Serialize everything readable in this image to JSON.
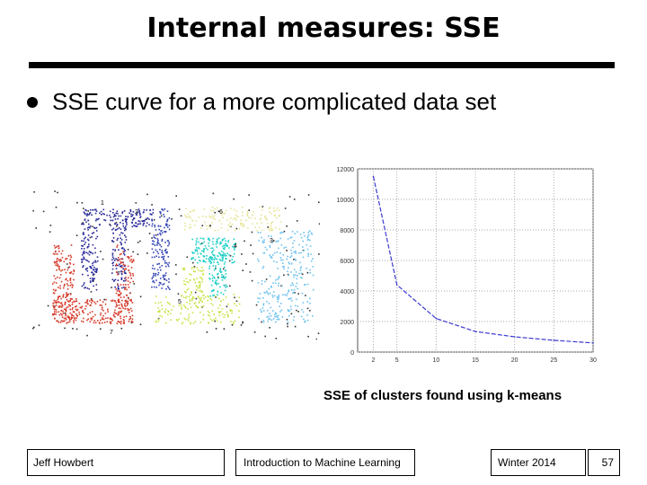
{
  "slide": {
    "title": "Internal measures: SSE",
    "bullet": "SSE curve for a more complicated data set",
    "caption": "SSE of clusters found using k-means"
  },
  "scatter_figure": {
    "cluster_labels": [
      "1",
      "2",
      "3",
      "4",
      "5",
      "6",
      "7"
    ],
    "cluster_colors": [
      "#2a2a9a",
      "#3646b6",
      "#6ec2ee",
      "#21d0c8",
      "#c8e54a",
      "#e7e395",
      "#d63a2a"
    ]
  },
  "chart_data": {
    "type": "line",
    "x": [
      2,
      5,
      10,
      15,
      20,
      25,
      30
    ],
    "y": [
      11500,
      4400,
      2200,
      1350,
      1000,
      770,
      600
    ],
    "xticks": [
      "2",
      "5",
      "10",
      "15",
      "20",
      "25",
      "30"
    ],
    "yticks": [
      "0",
      "2000",
      "4000",
      "6000",
      "8000",
      "10000",
      "12000"
    ],
    "xlim": [
      0,
      30
    ],
    "ylim": [
      0,
      12000
    ],
    "grid": true,
    "line_color": "#3a3ad0"
  },
  "footer": {
    "author": "Jeff Howbert",
    "course": "Introduction to Machine Learning",
    "term": "Winter 2014",
    "page": "57"
  }
}
